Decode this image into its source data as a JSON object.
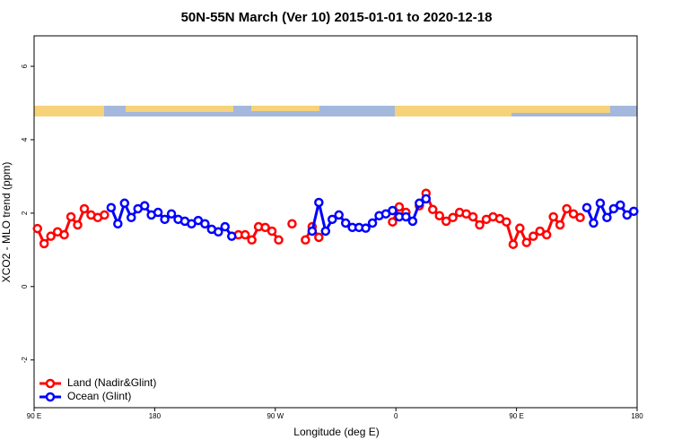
{
  "chart_data": {
    "type": "line",
    "title": "50N-55N March (Ver 10)   2015-01-01 to 2020-12-18",
    "x_label": "Longitude (deg E)",
    "y_label": "XCO2 - MLO trend (ppm)",
    "x": [
      92.5,
      97.5,
      102.5,
      107.5,
      112.5,
      117.5,
      122.5,
      127.5,
      132.5,
      137.5,
      142.5,
      147.5,
      152.5,
      157.5,
      162.5,
      167.5,
      172.5,
      177.5,
      182.5,
      187.5,
      192.5,
      197.5,
      202.5,
      207.5,
      212.5,
      217.5,
      222.5,
      227.5,
      232.5,
      237.5,
      242.5,
      247.5,
      252.5,
      257.5,
      262.5,
      267.5,
      272.5,
      277.5,
      282.5,
      287.5,
      292.5,
      297.5,
      302.5,
      307.5,
      312.5,
      317.5,
      322.5,
      327.5,
      332.5,
      337.5,
      342.5,
      347.5,
      352.5,
      357.5,
      362.5,
      367.5,
      372.5,
      377.5,
      382.5,
      387.5,
      392.5,
      397.5,
      402.5,
      407.5,
      412.5,
      417.5,
      422.5,
      427.5,
      432.5,
      437.5,
      442.5,
      447.5,
      452.5,
      457.5,
      462.5,
      467.5,
      472.5,
      477.5,
      482.5,
      487.5,
      492.5,
      497.5,
      502.5,
      507.5,
      512.5,
      517.5,
      522.5,
      527.5,
      532.5,
      537.5
    ],
    "series": [
      {
        "name": "Land (Nadir&Glint)",
        "color": "#ff0000",
        "values": [
          1.58,
          1.17,
          1.37,
          1.49,
          1.41,
          1.9,
          1.68,
          2.12,
          1.95,
          1.88,
          1.95,
          null,
          null,
          null,
          null,
          null,
          null,
          null,
          null,
          null,
          null,
          null,
          null,
          null,
          null,
          null,
          null,
          null,
          null,
          null,
          1.41,
          1.41,
          1.27,
          1.63,
          1.61,
          1.51,
          1.27,
          null,
          1.71,
          null,
          1.27,
          1.63,
          1.34,
          null,
          null,
          null,
          null,
          null,
          null,
          null,
          null,
          null,
          null,
          1.76,
          2.17,
          2.02,
          null,
          2.2,
          2.54,
          2.1,
          1.93,
          1.78,
          1.88,
          2.02,
          1.98,
          1.9,
          1.68,
          1.83,
          1.9,
          1.85,
          1.76,
          1.15,
          1.59,
          1.2,
          1.37,
          1.51,
          1.41,
          1.9,
          1.68,
          2.12,
          1.98,
          1.88,
          null,
          null,
          null,
          null,
          null,
          null,
          null,
          null
        ]
      },
      {
        "name": "Ocean (Glint)",
        "color": "#0000ff",
        "values": [
          null,
          null,
          null,
          null,
          null,
          null,
          null,
          null,
          null,
          null,
          null,
          2.15,
          1.71,
          2.27,
          1.88,
          2.12,
          2.2,
          1.95,
          2.02,
          1.83,
          1.98,
          1.83,
          1.78,
          1.71,
          1.8,
          1.71,
          1.56,
          1.49,
          1.63,
          1.37,
          null,
          null,
          null,
          null,
          null,
          null,
          null,
          null,
          null,
          null,
          null,
          1.51,
          2.29,
          1.51,
          1.83,
          1.95,
          1.73,
          1.61,
          1.61,
          1.59,
          1.73,
          1.93,
          1.98,
          2.07,
          1.9,
          1.9,
          1.78,
          2.27,
          2.39,
          null,
          null,
          null,
          null,
          null,
          null,
          null,
          null,
          null,
          null,
          null,
          null,
          null,
          null,
          null,
          null,
          null,
          null,
          null,
          null,
          null,
          null,
          null,
          2.15,
          1.73,
          2.27,
          1.88,
          2.12,
          2.22,
          1.95,
          2.05
        ]
      }
    ],
    "xlim": [
      90,
      540
    ],
    "xticks": [
      {
        "value": 90,
        "label": "90 E"
      },
      180,
      {
        "value": 270,
        "label": "90 W"
      },
      {
        "value": 360,
        "label": "0"
      },
      {
        "value": 450,
        "label": "90 E"
      },
      {
        "value": 540,
        "label": "180"
      }
    ],
    "ylim": [
      -3.3,
      6.83
    ],
    "yticks": [
      -2,
      0,
      2,
      4,
      6
    ],
    "legend": "bottom-left"
  }
}
